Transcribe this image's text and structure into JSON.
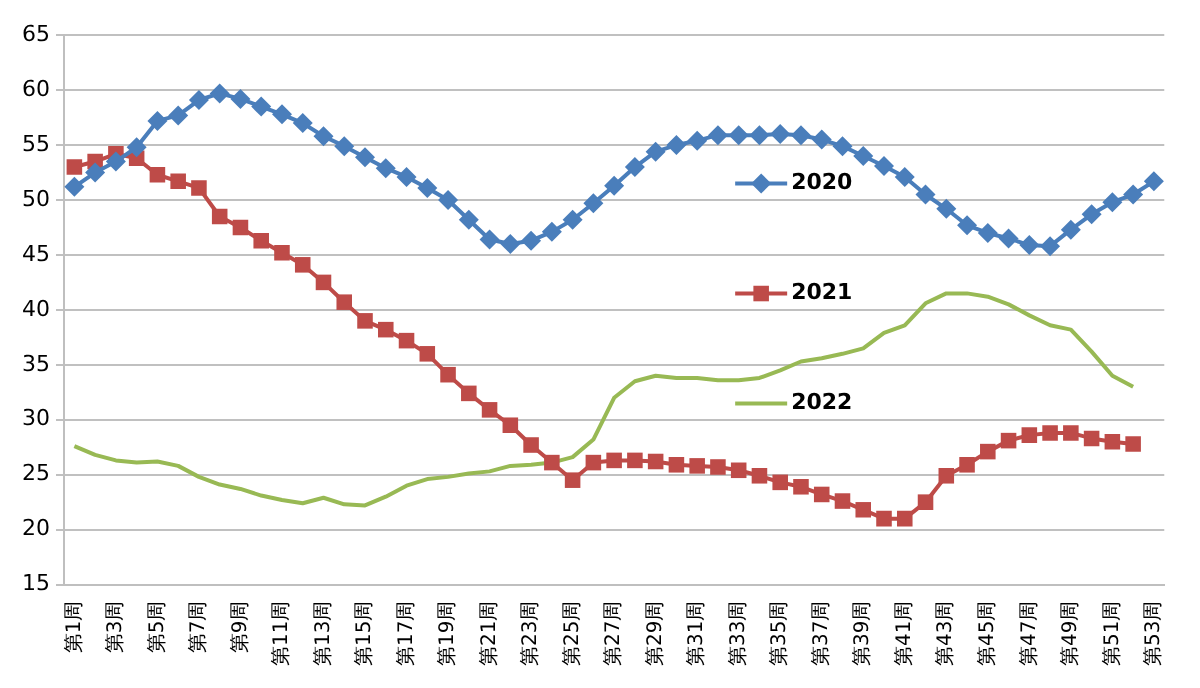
{
  "chart_data": {
    "type": "line",
    "categories": [
      "第1周",
      null,
      "第3周",
      null,
      "第5周",
      null,
      "第7周",
      null,
      "第9周",
      null,
      "第11周",
      null,
      "第13周",
      null,
      "第15周",
      null,
      "第17周",
      null,
      "第19周",
      null,
      "第21周",
      null,
      "第23周",
      null,
      "第25周",
      null,
      "第27周",
      null,
      "第29周",
      null,
      "第31周",
      null,
      "第33周",
      null,
      "第35周",
      null,
      "第37周",
      null,
      "第39周",
      null,
      "第41周",
      null,
      "第43周",
      null,
      "第45周",
      null,
      "第47周",
      null,
      "第49周",
      null,
      "第51周",
      null,
      "第53周"
    ],
    "series": [
      {
        "name": "2020",
        "color": "#4a7ebb",
        "marker": "diamond",
        "values": [
          51.2,
          52.5,
          53.5,
          54.8,
          57.2,
          57.7,
          59.1,
          59.7,
          59.2,
          58.5,
          57.8,
          57.0,
          55.8,
          54.9,
          53.9,
          52.9,
          52.1,
          51.1,
          50.0,
          48.2,
          46.4,
          46.0,
          46.3,
          47.1,
          48.2,
          49.7,
          51.3,
          53.0,
          54.4,
          55.0,
          55.4,
          55.9,
          55.9,
          55.9,
          56.0,
          55.9,
          55.5,
          54.9,
          54.0,
          53.1,
          52.1,
          50.5,
          49.2,
          47.7,
          47.0,
          46.5,
          45.9,
          45.8,
          47.3,
          48.7,
          49.8,
          50.5,
          51.7
        ]
      },
      {
        "name": "2021",
        "color": "#be4b48",
        "marker": "square",
        "values": [
          53.0,
          53.5,
          54.2,
          53.8,
          52.3,
          51.7,
          51.1,
          48.5,
          47.5,
          46.3,
          45.2,
          44.1,
          42.5,
          40.7,
          39.0,
          38.2,
          37.2,
          36.0,
          34.1,
          32.4,
          30.9,
          29.5,
          27.7,
          26.1,
          24.5,
          26.1,
          26.3,
          26.3,
          26.2,
          25.9,
          25.8,
          25.7,
          25.4,
          24.9,
          24.3,
          23.9,
          23.2,
          22.6,
          21.8,
          21.0,
          21.0,
          22.5,
          24.9,
          25.9,
          27.1,
          28.1,
          28.6,
          28.8,
          28.8,
          28.3,
          28.0,
          27.8,
          null
        ]
      },
      {
        "name": "2022",
        "color": "#98b954",
        "marker": "none",
        "values": [
          27.6,
          26.8,
          26.3,
          26.1,
          26.2,
          25.8,
          24.8,
          24.1,
          23.7,
          23.1,
          22.7,
          22.4,
          22.9,
          22.3,
          22.2,
          23.0,
          24.0,
          24.6,
          24.8,
          25.1,
          25.3,
          25.8,
          25.9,
          26.1,
          26.6,
          28.2,
          32.0,
          33.5,
          34.0,
          33.8,
          33.8,
          33.6,
          33.6,
          33.8,
          34.5,
          35.3,
          35.6,
          36.0,
          36.5,
          37.9,
          38.6,
          40.6,
          41.5,
          41.5,
          41.2,
          40.5,
          39.5,
          38.6,
          38.2,
          36.2,
          34.0,
          33.0,
          null
        ]
      }
    ],
    "ylim": [
      15,
      65
    ],
    "yticks": [
      15,
      20,
      25,
      30,
      35,
      40,
      45,
      50,
      55,
      60,
      65
    ],
    "grid": "y",
    "legend": "right"
  }
}
